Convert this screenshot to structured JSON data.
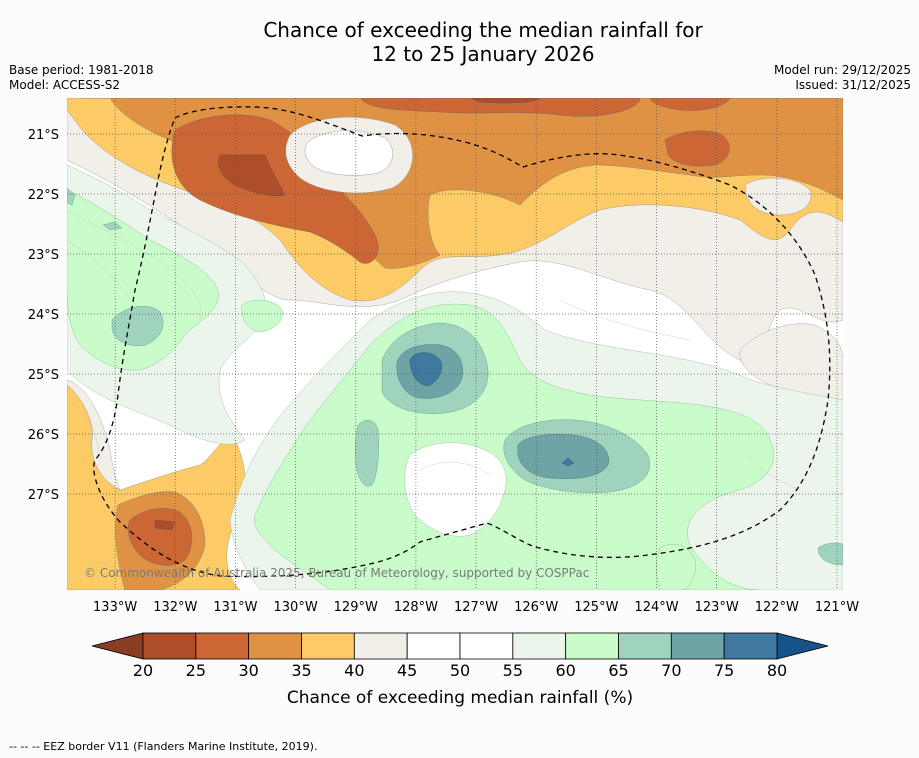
{
  "chart_data": {
    "type": "heatmap",
    "title_line1": "Chance of exceeding the median rainfall for",
    "title_line2": "12 to 25 January 2026",
    "base_period": "Base period: 1981-2018",
    "model": "Model: ACCESS-S2",
    "model_run": "Model run: 29/12/2025",
    "issued": "Issued: 31/12/2025",
    "lat_ticks": [
      "21°S",
      "22°S",
      "23°S",
      "24°S",
      "25°S",
      "26°S",
      "27°S"
    ],
    "lat_values": [
      -21,
      -22,
      -23,
      -24,
      -25,
      -26,
      -27
    ],
    "lon_ticks": [
      "133°W",
      "132°W",
      "131°W",
      "130°W",
      "129°W",
      "128°W",
      "127°W",
      "126°W",
      "125°W",
      "124°W",
      "123°W",
      "122°W",
      "121°W"
    ],
    "lon_values": [
      -133,
      -132,
      -131,
      -130,
      -129,
      -128,
      -127,
      -126,
      -125,
      -124,
      -123,
      -122,
      -121
    ],
    "xlim": [
      -133.8,
      -120.9
    ],
    "ylim": [
      -28.6,
      -20.4
    ],
    "colorbar": {
      "ticks": [
        "20",
        "25",
        "30",
        "35",
        "40",
        "45",
        "50",
        "55",
        "60",
        "65",
        "70",
        "75",
        "80"
      ],
      "bin_edges": [
        20,
        25,
        30,
        35,
        40,
        45,
        50,
        55,
        60,
        65,
        70,
        75,
        80
      ],
      "colors": [
        "#ae4d29",
        "#cc6635",
        "#e09244",
        "#fdcb65",
        "#f2eee8",
        "#ffffff",
        "#ffffff",
        "#ecf5ec",
        "#c9fcca",
        "#9fd3bd",
        "#6ea4a5",
        "#3f79a0"
      ],
      "under_color": "#8a3d22",
      "over_color": "#17528a",
      "label": "Chance of exceeding median rainfall (%)"
    },
    "copyright": "© Commonwealth of Australia 2025, Bureau of Meteorology, supported by COSPPac",
    "legend_note": "--  --  -- EEZ border V11 (Flanders Marine Institute, 2019)."
  }
}
